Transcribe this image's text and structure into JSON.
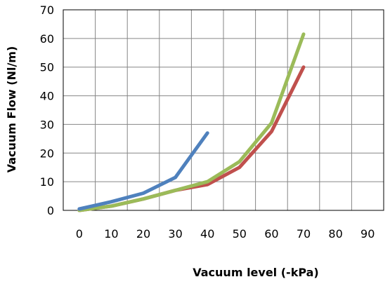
{
  "chart_data": {
    "type": "line",
    "title": "",
    "xlabel": "Vacuum level  (-kPa)",
    "ylabel": "Vacuum Flow (Nl/m)",
    "x_categories": [
      "0",
      "10",
      "20",
      "30",
      "40",
      "50",
      "60",
      "70",
      "80",
      "90"
    ],
    "ylim": [
      0,
      70
    ],
    "y_ticks": [
      0,
      10,
      20,
      30,
      40,
      50,
      60,
      70
    ],
    "grid": true,
    "legend": "none",
    "series": [
      {
        "color": "#4F81BD",
        "x": [
          0,
          10,
          20,
          30,
          40
        ],
        "y": [
          0.5,
          3,
          6,
          11.5,
          27
        ]
      },
      {
        "color": "#C0504D",
        "x": [
          0,
          10,
          20,
          30,
          40,
          50,
          60,
          70
        ],
        "y": [
          0,
          1.5,
          4,
          7,
          9,
          15,
          27.5,
          50
        ]
      },
      {
        "color": "#9BBB59",
        "x": [
          0,
          10,
          20,
          30,
          40,
          50,
          60,
          70
        ],
        "y": [
          0,
          1.5,
          4,
          7,
          10,
          17,
          30.5,
          61.5
        ]
      }
    ]
  }
}
